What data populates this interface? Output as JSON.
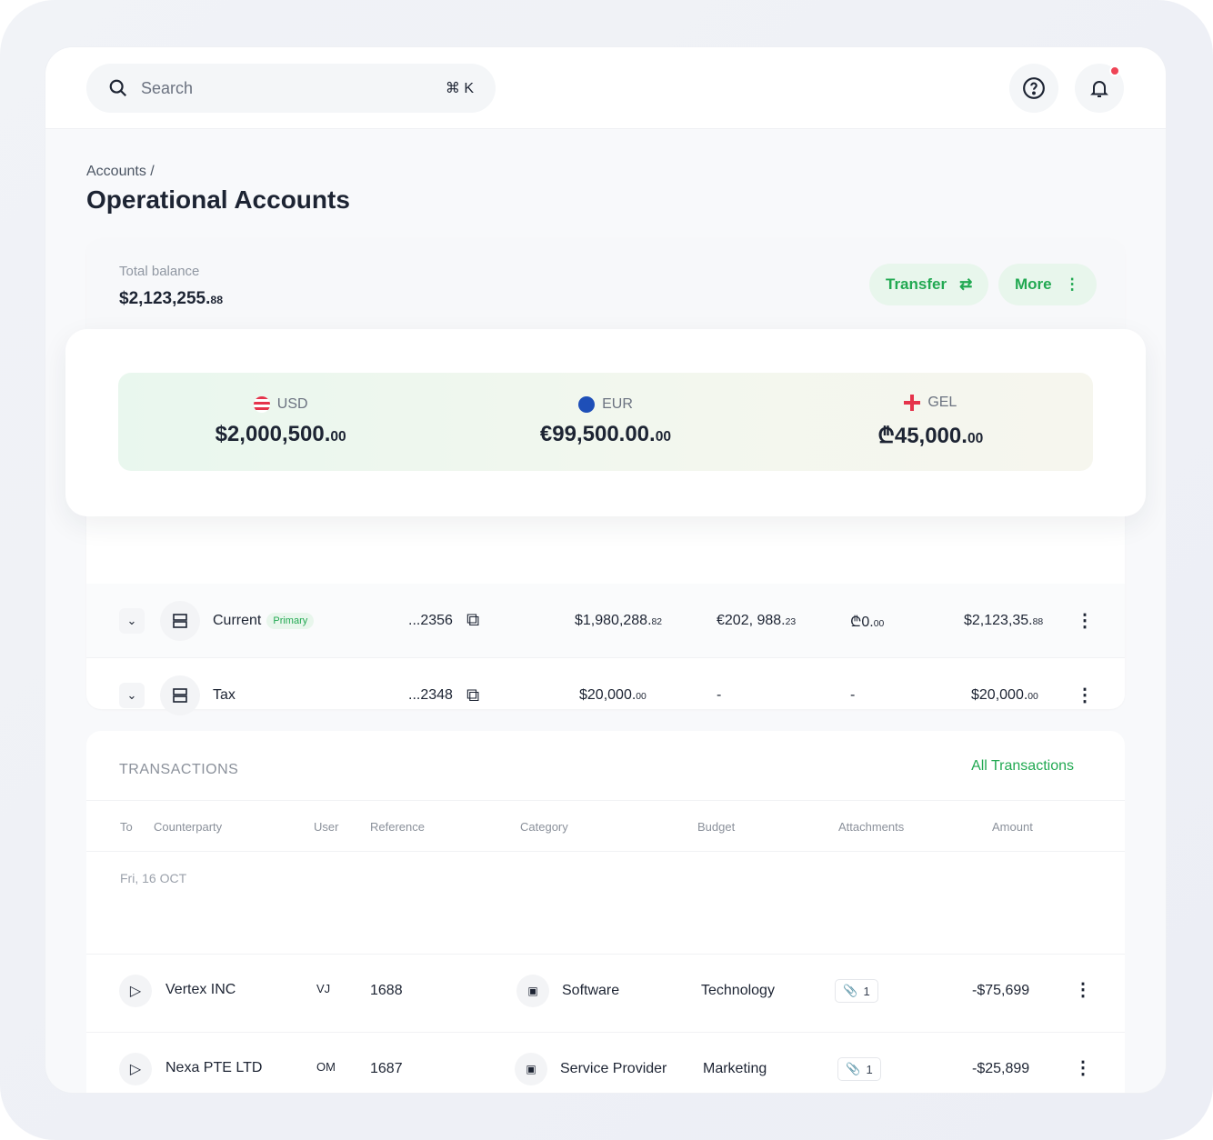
{
  "search": {
    "placeholder": "Search",
    "shortcut": "⌘ K"
  },
  "header": {
    "help_icon": "help-circle-icon",
    "bell_icon": "bell-icon",
    "has_notification": true
  },
  "breadcrumb": "Accounts /",
  "page_title": "Operational Accounts",
  "balance": {
    "label": "Total balance",
    "value": "$2,123,255.",
    "cents": "88"
  },
  "actions": {
    "transfer": "Transfer",
    "more": "More"
  },
  "currencies": [
    {
      "code": "USD",
      "amount": "$2,000,500.",
      "cents": "00"
    },
    {
      "code": "EUR",
      "amount": "€99,500.00.",
      "cents": "00"
    },
    {
      "code": "GEL",
      "amount": "₾45,000.",
      "cents": "00"
    }
  ],
  "accounts": [
    {
      "name": "Current",
      "badge": "Primary",
      "number": "...2356",
      "usd": "$1,980,288.",
      "usd_c": "82",
      "eur": "€202, 988.",
      "eur_c": "23",
      "gel": "₾0.",
      "gel_c": "00",
      "total": "$2,123,35.",
      "total_c": "88"
    },
    {
      "name": "Tax",
      "badge": "",
      "number": "...2348",
      "usd": "$20,000.",
      "usd_c": "00",
      "eur": "-",
      "eur_c": "",
      "gel": "-",
      "gel_c": "",
      "total": "$20,000.",
      "total_c": "00"
    }
  ],
  "transactions": {
    "title": "TRANSACTIONS",
    "all_link": "All Transactions",
    "columns": [
      "To",
      "Counterparty",
      "User",
      "Reference",
      "Category",
      "Budget",
      "Attachments",
      "Amount"
    ],
    "date_group": "Fri, 16 OCT",
    "rows": [
      {
        "counterparty": "Vertex INC",
        "user": "VJ",
        "reference": "1688",
        "category": "Software",
        "budget": "Technology",
        "attachments": "1",
        "amount": "-$75,699"
      },
      {
        "counterparty": "Nexa PTE LTD",
        "user": "OM",
        "reference": "1687",
        "category": "Service Provider",
        "budget": "Marketing",
        "attachments": "1",
        "amount": "-$25,899"
      }
    ]
  },
  "colors": {
    "accent": "#22a952",
    "notification": "#ef4456",
    "text": "#1d2433"
  }
}
